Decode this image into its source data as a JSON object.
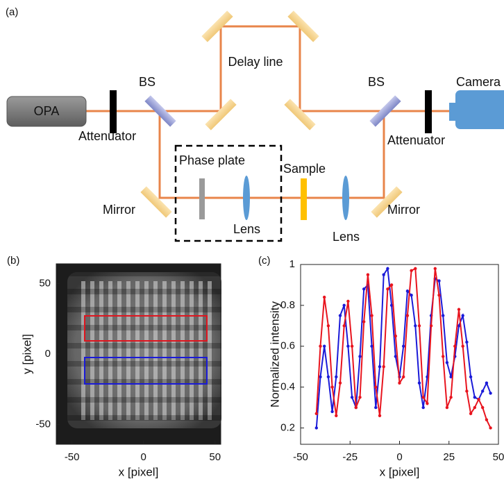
{
  "diagram": {
    "panel_label": "(a)",
    "source": "OPA",
    "attenuator_left": "Attenuator",
    "attenuator_right": "Attenuator",
    "bs_left": "BS",
    "bs_right": "BS",
    "delay": "Delay line",
    "camera": "Camera",
    "phase_plate": "Phase plate",
    "sample": "Sample",
    "mirror_left": "Mirror",
    "mirror_right": "Mirror",
    "lens_left": "Lens",
    "lens_right": "Lens"
  },
  "chart_data": [
    {
      "type": "image",
      "panel_label": "(b)",
      "xlabel": "x [pixel]",
      "ylabel": "y [pixel]",
      "xlim": [
        -61,
        54
      ],
      "ylim": [
        -64,
        64
      ],
      "xticks": [
        -50,
        0,
        50
      ],
      "yticks": [
        -50,
        0,
        50
      ]
    },
    {
      "type": "line",
      "panel_label": "(c)",
      "xlabel": "x [pixel]",
      "ylabel": "Normalized intensity",
      "xlim": [
        -50,
        50
      ],
      "ylim": [
        0.12,
        1
      ],
      "xticks": [
        -50,
        -25,
        0,
        25,
        50
      ],
      "yticks": [
        0.2,
        0.4,
        0.6,
        0.8,
        1
      ],
      "x": [
        -42,
        -40,
        -38,
        -36,
        -34,
        -32,
        -30,
        -28,
        -26,
        -24,
        -22,
        -20,
        -18,
        -16,
        -14,
        -12,
        -10,
        -8,
        -6,
        -4,
        -2,
        0,
        2,
        4,
        6,
        8,
        10,
        12,
        14,
        16,
        18,
        20,
        22,
        24,
        26,
        28,
        30,
        32,
        34,
        36,
        38,
        40,
        42,
        44,
        46
      ],
      "series": [
        {
          "color": "#1a1ad8",
          "values": [
            0.2,
            0.45,
            0.6,
            0.45,
            0.28,
            0.45,
            0.75,
            0.8,
            0.6,
            0.35,
            0.3,
            0.55,
            0.88,
            0.9,
            0.6,
            0.3,
            0.5,
            0.95,
            0.98,
            0.8,
            0.55,
            0.45,
            0.6,
            0.87,
            0.85,
            0.7,
            0.42,
            0.3,
            0.45,
            0.75,
            0.93,
            0.92,
            0.75,
            0.52,
            0.45,
            0.55,
            0.7,
            0.75,
            0.62,
            0.45,
            0.35,
            0.34,
            0.38,
            0.42,
            0.37
          ]
        },
        {
          "color": "#e8141e",
          "values": [
            0.27,
            0.6,
            0.84,
            0.7,
            0.4,
            0.26,
            0.42,
            0.7,
            0.82,
            0.6,
            0.3,
            0.35,
            0.72,
            0.95,
            0.75,
            0.4,
            0.26,
            0.5,
            0.88,
            0.9,
            0.65,
            0.42,
            0.45,
            0.75,
            0.97,
            0.98,
            0.7,
            0.35,
            0.32,
            0.7,
            0.98,
            0.85,
            0.55,
            0.3,
            0.35,
            0.6,
            0.78,
            0.6,
            0.38,
            0.27,
            0.3,
            0.34,
            0.3,
            0.24,
            0.2
          ]
        }
      ]
    }
  ]
}
